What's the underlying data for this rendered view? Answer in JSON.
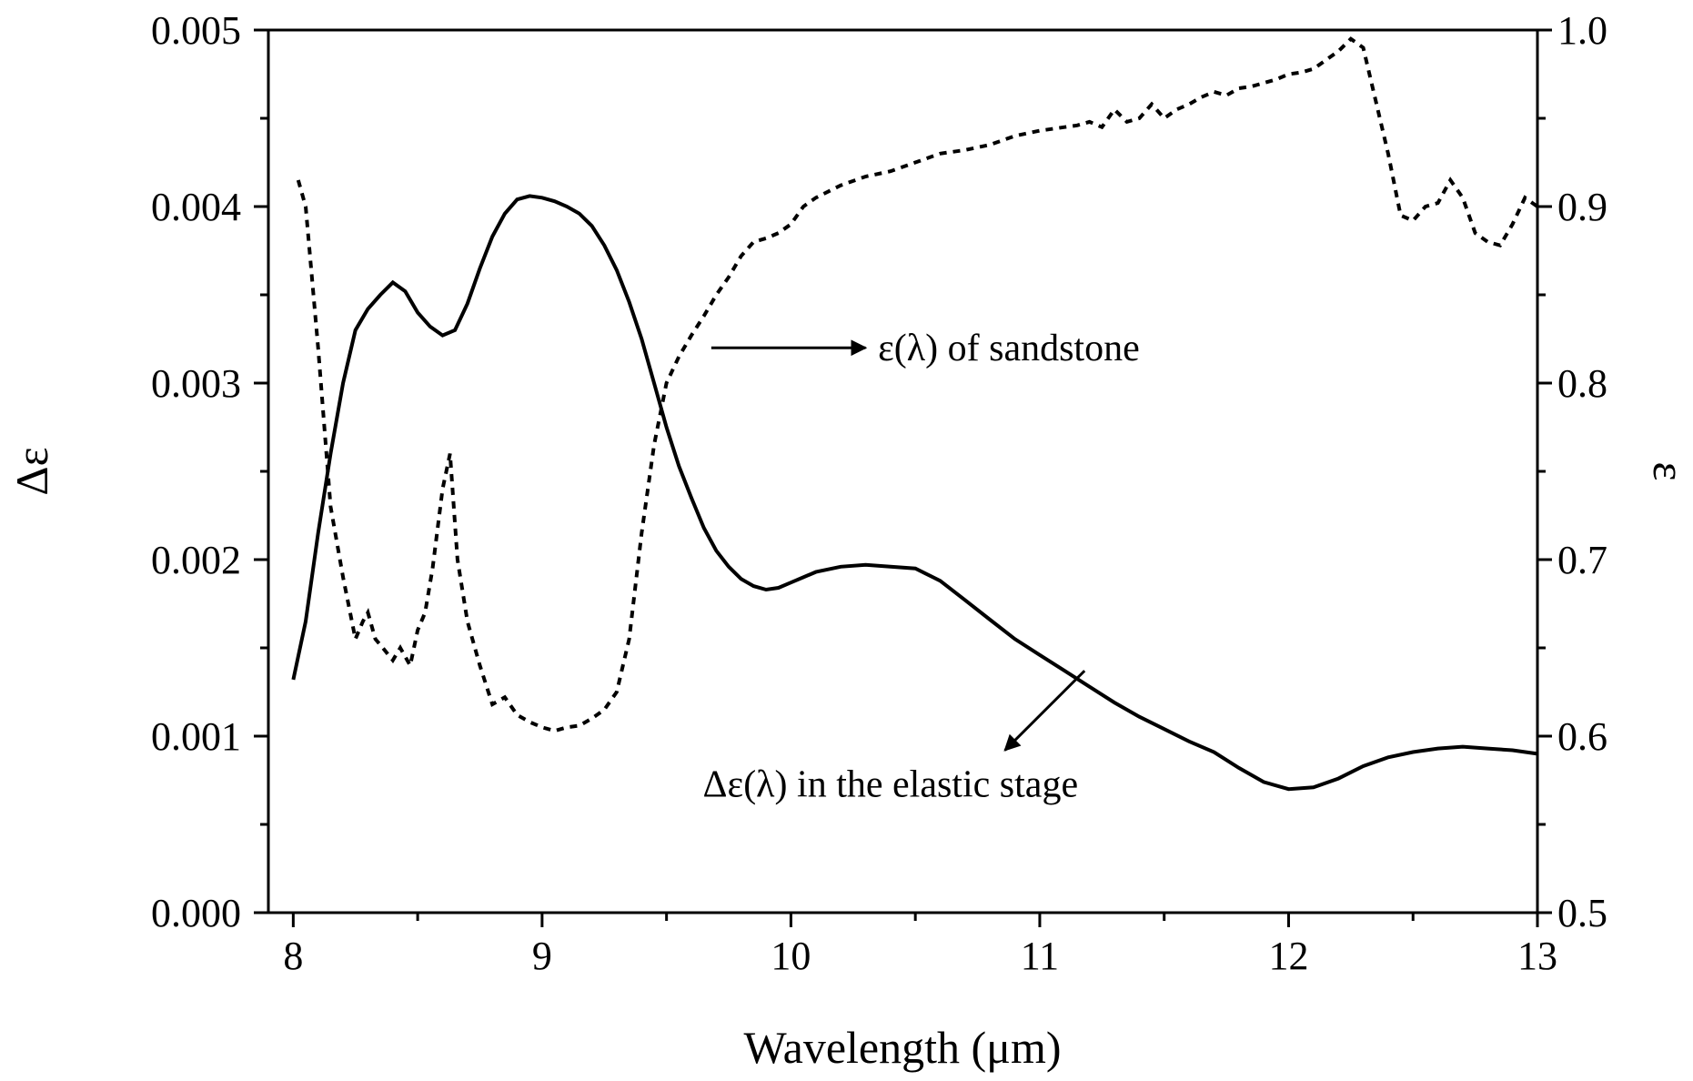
{
  "chart_data": {
    "type": "line",
    "title": "",
    "xlabel": "Wavelength (μm)",
    "ylabel_left": "Δε",
    "ylabel_right": "ε",
    "xlim": [
      7.9,
      13
    ],
    "ylim_left": [
      0,
      0.005
    ],
    "ylim_right": [
      0.5,
      1.0
    ],
    "x_ticks": [
      "8",
      "9",
      "10",
      "11",
      "12",
      "13"
    ],
    "y_left_ticks": [
      "0.000",
      "0.001",
      "0.002",
      "0.003",
      "0.004",
      "0.005"
    ],
    "y_right_ticks": [
      "0.5",
      "0.6",
      "0.7",
      "0.8",
      "0.9",
      "1.0"
    ],
    "grid": false,
    "series": [
      {
        "name": "Δε(λ) in the elastic stage",
        "axis": "left",
        "style": "solid",
        "x": [
          8.0,
          8.05,
          8.1,
          8.15,
          8.2,
          8.25,
          8.3,
          8.35,
          8.4,
          8.45,
          8.5,
          8.55,
          8.6,
          8.65,
          8.7,
          8.75,
          8.8,
          8.85,
          8.9,
          8.95,
          9.0,
          9.05,
          9.1,
          9.15,
          9.2,
          9.25,
          9.3,
          9.35,
          9.4,
          9.45,
          9.5,
          9.55,
          9.6,
          9.65,
          9.7,
          9.75,
          9.8,
          9.85,
          9.9,
          9.95,
          10.0,
          10.05,
          10.1,
          10.2,
          10.3,
          10.4,
          10.5,
          10.6,
          10.7,
          10.8,
          10.9,
          11.0,
          11.1,
          11.2,
          11.3,
          11.4,
          11.5,
          11.6,
          11.7,
          11.8,
          11.9,
          12.0,
          12.1,
          12.2,
          12.3,
          12.4,
          12.5,
          12.6,
          12.7,
          12.8,
          12.9,
          13.0
        ],
        "values": [
          0.00132,
          0.00165,
          0.00215,
          0.0026,
          0.003,
          0.0033,
          0.00342,
          0.0035,
          0.00357,
          0.00352,
          0.0034,
          0.00332,
          0.00327,
          0.0033,
          0.00345,
          0.00365,
          0.00383,
          0.00396,
          0.00404,
          0.00406,
          0.00405,
          0.00403,
          0.004,
          0.00396,
          0.00389,
          0.00378,
          0.00364,
          0.00346,
          0.00325,
          0.003,
          0.00275,
          0.00253,
          0.00235,
          0.00218,
          0.00205,
          0.00196,
          0.00189,
          0.00185,
          0.00183,
          0.00184,
          0.00187,
          0.0019,
          0.00193,
          0.00196,
          0.00197,
          0.00196,
          0.00195,
          0.00188,
          0.00177,
          0.00166,
          0.00155,
          0.00146,
          0.00137,
          0.00128,
          0.00119,
          0.00111,
          0.00104,
          0.00097,
          0.00091,
          0.00082,
          0.00074,
          0.0007,
          0.00071,
          0.00076,
          0.00083,
          0.00088,
          0.00091,
          0.00093,
          0.00094,
          0.00093,
          0.00092,
          0.0009
        ]
      },
      {
        "name": "ε(λ) of sandstone",
        "axis": "right",
        "style": "dashed",
        "x": [
          8.02,
          8.05,
          8.1,
          8.15,
          8.2,
          8.25,
          8.28,
          8.3,
          8.33,
          8.36,
          8.4,
          8.43,
          8.47,
          8.5,
          8.53,
          8.56,
          8.6,
          8.63,
          8.66,
          8.7,
          8.75,
          8.8,
          8.85,
          8.9,
          8.95,
          9.0,
          9.05,
          9.1,
          9.15,
          9.2,
          9.25,
          9.3,
          9.35,
          9.4,
          9.45,
          9.5,
          9.55,
          9.6,
          9.65,
          9.7,
          9.75,
          9.8,
          9.85,
          9.9,
          9.95,
          10.0,
          10.05,
          10.1,
          10.2,
          10.3,
          10.4,
          10.5,
          10.6,
          10.7,
          10.8,
          10.9,
          11.0,
          11.1,
          11.15,
          11.2,
          11.25,
          11.3,
          11.35,
          11.4,
          11.45,
          11.5,
          11.55,
          11.6,
          11.65,
          11.7,
          11.75,
          11.8,
          11.85,
          11.9,
          11.95,
          12.0,
          12.05,
          12.1,
          12.15,
          12.2,
          12.25,
          12.3,
          12.35,
          12.4,
          12.45,
          12.5,
          12.55,
          12.6,
          12.65,
          12.7,
          12.75,
          12.8,
          12.85,
          12.9,
          12.95,
          13.0
        ],
        "values": [
          0.915,
          0.9,
          0.82,
          0.73,
          0.69,
          0.655,
          0.665,
          0.67,
          0.655,
          0.65,
          0.643,
          0.65,
          0.64,
          0.66,
          0.67,
          0.695,
          0.74,
          0.76,
          0.7,
          0.665,
          0.64,
          0.618,
          0.622,
          0.612,
          0.608,
          0.605,
          0.603,
          0.605,
          0.606,
          0.61,
          0.615,
          0.625,
          0.655,
          0.715,
          0.765,
          0.8,
          0.815,
          0.827,
          0.838,
          0.85,
          0.86,
          0.872,
          0.88,
          0.882,
          0.885,
          0.89,
          0.9,
          0.905,
          0.912,
          0.917,
          0.92,
          0.925,
          0.93,
          0.932,
          0.935,
          0.94,
          0.943,
          0.945,
          0.946,
          0.948,
          0.945,
          0.955,
          0.948,
          0.95,
          0.958,
          0.95,
          0.955,
          0.958,
          0.962,
          0.965,
          0.963,
          0.967,
          0.968,
          0.97,
          0.972,
          0.975,
          0.976,
          0.978,
          0.983,
          0.988,
          0.995,
          0.99,
          0.96,
          0.93,
          0.895,
          0.892,
          0.9,
          0.902,
          0.915,
          0.905,
          0.885,
          0.88,
          0.878,
          0.89,
          0.905,
          0.9
        ]
      }
    ],
    "annotations": [
      {
        "text": "ε(λ) of sandstone",
        "x": 10.35,
        "y": 0.82,
        "axis": "right",
        "arrow_from": [
          9.68,
          0.82
        ],
        "arrow_to": [
          10.3,
          0.82
        ]
      },
      {
        "text": "Δε(λ) in the elastic stage",
        "x": 10.4,
        "y": 0.00073,
        "axis": "left",
        "arrow_from": [
          11.18,
          0.00137
        ],
        "arrow_to": [
          10.86,
          0.00092
        ]
      }
    ]
  }
}
